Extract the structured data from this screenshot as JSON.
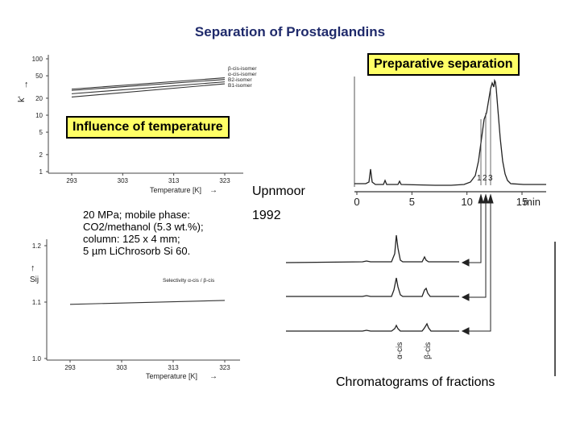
{
  "title": "Separation of Prostaglandins",
  "labels": {
    "preparative": "Preparative separation",
    "influence": "Influence of temperature",
    "author": "Upnmoor",
    "year": "1992",
    "fractions": "Chromatograms of fractions"
  },
  "conditions": [
    "20 MPa; mobile phase:",
    "CO2/methanol (5.3 wt.%);",
    "column: 125 x 4 mm;",
    "5 µm LiChrosorb Si 60."
  ],
  "chart_data": [
    {
      "type": "line",
      "ylabel": "k'",
      "xlabel": "Temperature [K]",
      "x_ticks": [
        "293",
        "303",
        "313",
        "323"
      ],
      "y_ticks": [
        "1",
        "2",
        "5",
        "10",
        "20",
        "50",
        "100"
      ],
      "yscale": "log",
      "series": [
        {
          "name": "β-cis-isomer",
          "x": [
            293,
            323
          ],
          "y": [
            29,
            46
          ]
        },
        {
          "name": "α-cis-isomer",
          "x": [
            293,
            323
          ],
          "y": [
            27.5,
            43
          ]
        },
        {
          "name": "B2-isomer",
          "x": [
            293,
            323
          ],
          "y": [
            24,
            39
          ]
        },
        {
          "name": "B1-isomer",
          "x": [
            293,
            323
          ],
          "y": [
            21,
            36
          ]
        }
      ]
    },
    {
      "type": "line",
      "ylabel": "Sij",
      "xlabel": "Temperature [K]",
      "x_ticks": [
        "293",
        "303",
        "313",
        "323"
      ],
      "y_ticks": [
        "1.0",
        "1.1",
        "1.2"
      ],
      "ylim": [
        1.0,
        1.2
      ],
      "series": [
        {
          "name": "Selectivity α-cis / β-cis",
          "x": [
            293,
            323
          ],
          "y": [
            1.096,
            1.103
          ]
        }
      ]
    },
    {
      "type": "line",
      "xlabel": "min",
      "x_ticks": [
        "0",
        "5",
        "10",
        "15"
      ],
      "peak_labels": [
        "1",
        "2",
        "3"
      ]
    },
    {
      "type": "line",
      "peak_labels": [
        "α-cis",
        "β-cis"
      ]
    }
  ]
}
